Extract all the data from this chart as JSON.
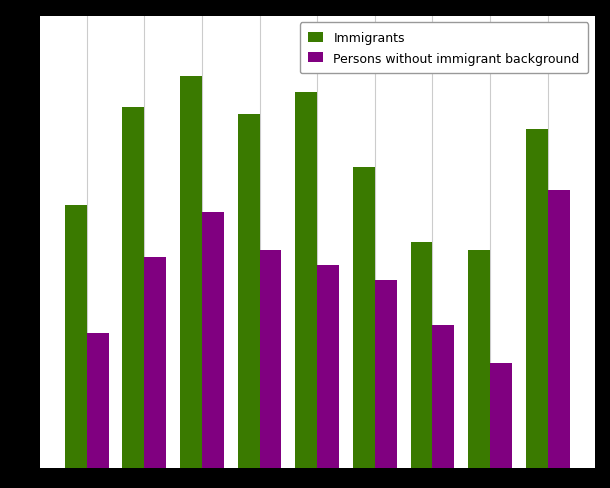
{
  "immigrants_vals": [
    35,
    48,
    52,
    47,
    50,
    40,
    30,
    29,
    45
  ],
  "non_immigrants_vals": [
    18,
    28,
    34,
    29,
    27,
    25,
    19,
    14,
    37
  ],
  "immigrant_color": "#3a7a00",
  "non_immigrant_color": "#800080",
  "legend_labels": [
    "Immigrants",
    "Persons without immigrant background"
  ],
  "background_color": "#ffffff",
  "grid_color": "#cccccc",
  "ylim": [
    0,
    60
  ],
  "bar_width": 0.38,
  "figure_facecolor": "#000000",
  "figure_width": 6.1,
  "figure_height": 4.89,
  "dpi": 100
}
